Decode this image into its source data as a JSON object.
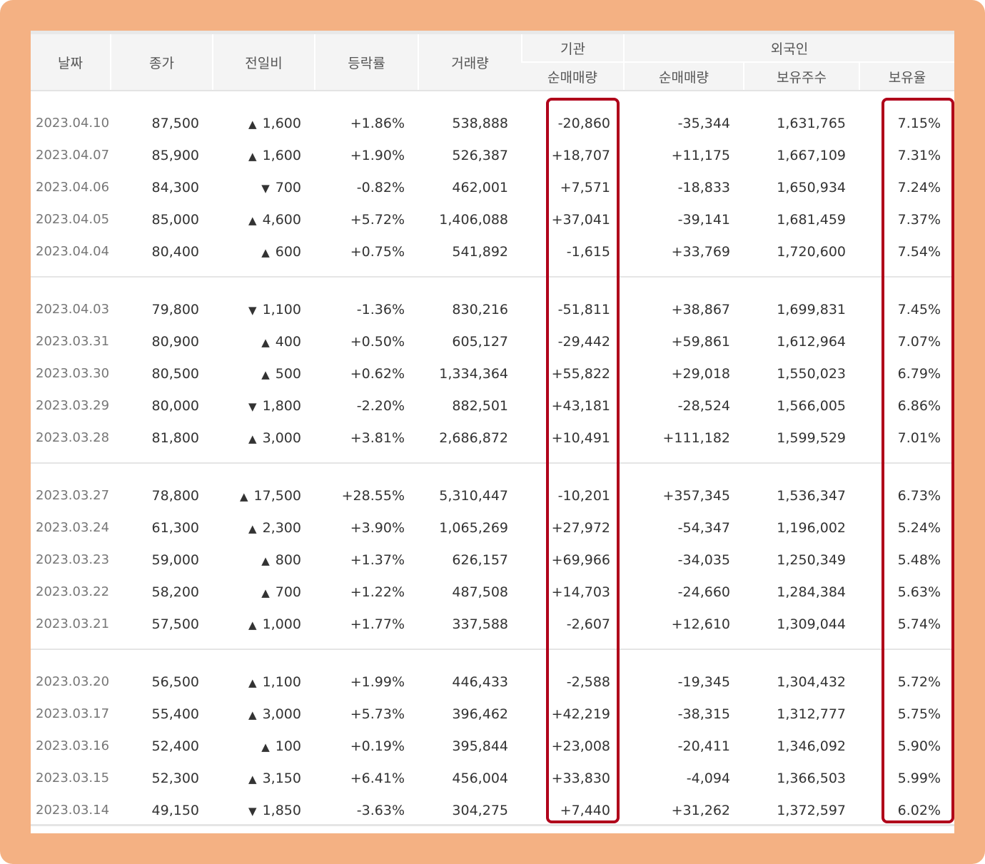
{
  "headers": {
    "date": "날짜",
    "close": "종가",
    "change": "전일비",
    "rate": "등락률",
    "volume": "거래량",
    "institution": "기관",
    "institution_net": "순매매량",
    "foreign": "외국인",
    "foreign_net": "순매매량",
    "foreign_shares": "보유주수",
    "foreign_ratio": "보유율"
  },
  "colors": {
    "up": "#E02020",
    "down": "#2260D8",
    "highlight": "#B0001A",
    "frame": "#F4B183"
  },
  "groups": [
    [
      {
        "date": "2023.04.10",
        "close": "87,500",
        "dir": "up",
        "arrow": "▲",
        "change": "1,600",
        "rate": "+1.86%",
        "volume": "538,888",
        "inst": "-20,860",
        "frgn": "-35,344",
        "shares": "1,631,765",
        "ratio": "7.15%"
      },
      {
        "date": "2023.04.07",
        "close": "85,900",
        "dir": "up",
        "arrow": "▲",
        "change": "1,600",
        "rate": "+1.90%",
        "volume": "526,387",
        "inst": "+18,707",
        "frgn": "+11,175",
        "shares": "1,667,109",
        "ratio": "7.31%"
      },
      {
        "date": "2023.04.06",
        "close": "84,300",
        "dir": "dn",
        "arrow": "▼",
        "change": "700",
        "rate": "-0.82%",
        "volume": "462,001",
        "inst": "+7,571",
        "frgn": "-18,833",
        "shares": "1,650,934",
        "ratio": "7.24%"
      },
      {
        "date": "2023.04.05",
        "close": "85,000",
        "dir": "up",
        "arrow": "▲",
        "change": "4,600",
        "rate": "+5.72%",
        "volume": "1,406,088",
        "inst": "+37,041",
        "frgn": "-39,141",
        "shares": "1,681,459",
        "ratio": "7.37%"
      },
      {
        "date": "2023.04.04",
        "close": "80,400",
        "dir": "up",
        "arrow": "▲",
        "change": "600",
        "rate": "+0.75%",
        "volume": "541,892",
        "inst": "-1,615",
        "frgn": "+33,769",
        "shares": "1,720,600",
        "ratio": "7.54%"
      }
    ],
    [
      {
        "date": "2023.04.03",
        "close": "79,800",
        "dir": "dn",
        "arrow": "▼",
        "change": "1,100",
        "rate": "-1.36%",
        "volume": "830,216",
        "inst": "-51,811",
        "frgn": "+38,867",
        "shares": "1,699,831",
        "ratio": "7.45%"
      },
      {
        "date": "2023.03.31",
        "close": "80,900",
        "dir": "up",
        "arrow": "▲",
        "change": "400",
        "rate": "+0.50%",
        "volume": "605,127",
        "inst": "-29,442",
        "frgn": "+59,861",
        "shares": "1,612,964",
        "ratio": "7.07%"
      },
      {
        "date": "2023.03.30",
        "close": "80,500",
        "dir": "up",
        "arrow": "▲",
        "change": "500",
        "rate": "+0.62%",
        "volume": "1,334,364",
        "inst": "+55,822",
        "frgn": "+29,018",
        "shares": "1,550,023",
        "ratio": "6.79%"
      },
      {
        "date": "2023.03.29",
        "close": "80,000",
        "dir": "dn",
        "arrow": "▼",
        "change": "1,800",
        "rate": "-2.20%",
        "volume": "882,501",
        "inst": "+43,181",
        "frgn": "-28,524",
        "shares": "1,566,005",
        "ratio": "6.86%"
      },
      {
        "date": "2023.03.28",
        "close": "81,800",
        "dir": "up",
        "arrow": "▲",
        "change": "3,000",
        "rate": "+3.81%",
        "volume": "2,686,872",
        "inst": "+10,491",
        "frgn": "+111,182",
        "shares": "1,599,529",
        "ratio": "7.01%"
      }
    ],
    [
      {
        "date": "2023.03.27",
        "close": "78,800",
        "dir": "up",
        "arrow": "▲",
        "change": "17,500",
        "rate": "+28.55%",
        "volume": "5,310,447",
        "inst": "-10,201",
        "frgn": "+357,345",
        "shares": "1,536,347",
        "ratio": "6.73%"
      },
      {
        "date": "2023.03.24",
        "close": "61,300",
        "dir": "up",
        "arrow": "▲",
        "change": "2,300",
        "rate": "+3.90%",
        "volume": "1,065,269",
        "inst": "+27,972",
        "frgn": "-54,347",
        "shares": "1,196,002",
        "ratio": "5.24%"
      },
      {
        "date": "2023.03.23",
        "close": "59,000",
        "dir": "up",
        "arrow": "▲",
        "change": "800",
        "rate": "+1.37%",
        "volume": "626,157",
        "inst": "+69,966",
        "frgn": "-34,035",
        "shares": "1,250,349",
        "ratio": "5.48%"
      },
      {
        "date": "2023.03.22",
        "close": "58,200",
        "dir": "up",
        "arrow": "▲",
        "change": "700",
        "rate": "+1.22%",
        "volume": "487,508",
        "inst": "+14,703",
        "frgn": "-24,660",
        "shares": "1,284,384",
        "ratio": "5.63%"
      },
      {
        "date": "2023.03.21",
        "close": "57,500",
        "dir": "up",
        "arrow": "▲",
        "change": "1,000",
        "rate": "+1.77%",
        "volume": "337,588",
        "inst": "-2,607",
        "frgn": "+12,610",
        "shares": "1,309,044",
        "ratio": "5.74%"
      }
    ],
    [
      {
        "date": "2023.03.20",
        "close": "56,500",
        "dir": "up",
        "arrow": "▲",
        "change": "1,100",
        "rate": "+1.99%",
        "volume": "446,433",
        "inst": "-2,588",
        "frgn": "-19,345",
        "shares": "1,304,432",
        "ratio": "5.72%"
      },
      {
        "date": "2023.03.17",
        "close": "55,400",
        "dir": "up",
        "arrow": "▲",
        "change": "3,000",
        "rate": "+5.73%",
        "volume": "396,462",
        "inst": "+42,219",
        "frgn": "-38,315",
        "shares": "1,312,777",
        "ratio": "5.75%"
      },
      {
        "date": "2023.03.16",
        "close": "52,400",
        "dir": "up",
        "arrow": "▲",
        "change": "100",
        "rate": "+0.19%",
        "volume": "395,844",
        "inst": "+23,008",
        "frgn": "-20,411",
        "shares": "1,346,092",
        "ratio": "5.90%"
      },
      {
        "date": "2023.03.15",
        "close": "52,300",
        "dir": "up",
        "arrow": "▲",
        "change": "3,150",
        "rate": "+6.41%",
        "volume": "456,004",
        "inst": "+33,830",
        "frgn": "-4,094",
        "shares": "1,366,503",
        "ratio": "5.99%"
      },
      {
        "date": "2023.03.14",
        "close": "49,150",
        "dir": "dn",
        "arrow": "▼",
        "change": "1,850",
        "rate": "-3.63%",
        "volume": "304,275",
        "inst": "+7,440",
        "frgn": "+31,262",
        "shares": "1,372,597",
        "ratio": "6.02%"
      }
    ]
  ]
}
